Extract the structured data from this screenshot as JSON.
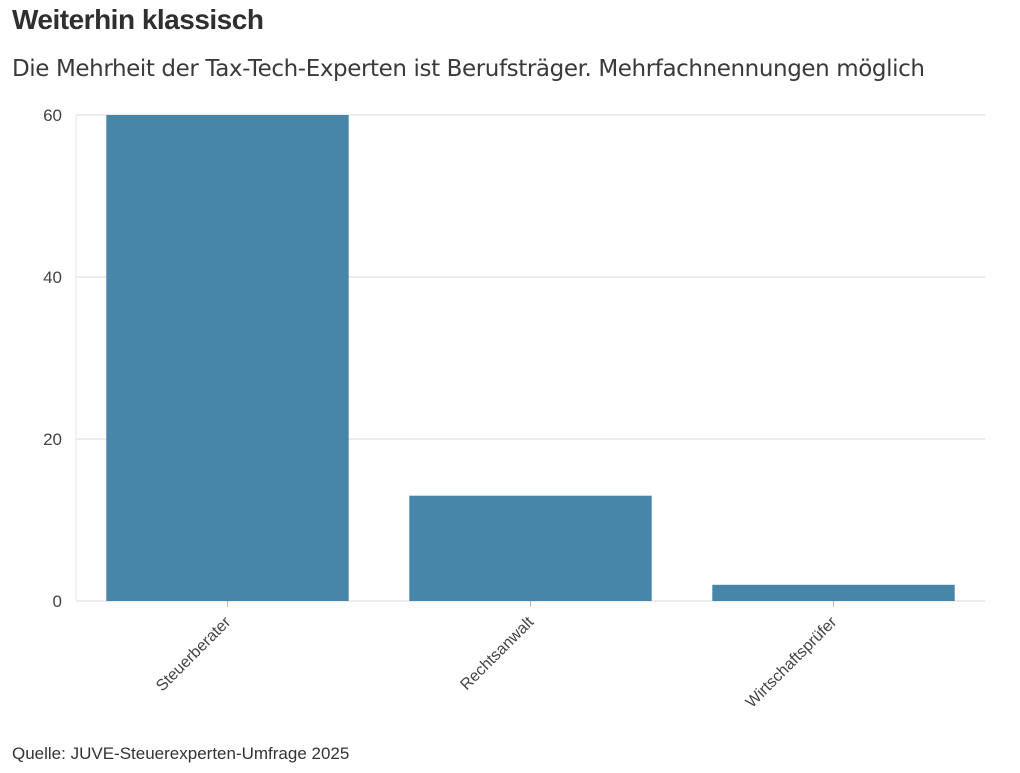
{
  "chart_data": {
    "type": "bar",
    "title": "Weiterhin klassisch",
    "subtitle": "Die Mehrheit der Tax-Tech-Experten ist Berufsträger. Mehrfachnennungen möglich",
    "categories": [
      "Steuerberater",
      "Rechtsanwalt",
      "Wirtschaftsprüfer"
    ],
    "values": [
      60,
      13,
      2
    ],
    "yticks": [
      0,
      20,
      40,
      60
    ],
    "ylim": [
      0,
      60
    ],
    "xlabel": "",
    "ylabel": "",
    "grid": true,
    "bar_color": "#4785a9",
    "grid_color": "#e6e6e6",
    "source": "Quelle: JUVE-Steuerexperten-Umfrage 2025"
  }
}
